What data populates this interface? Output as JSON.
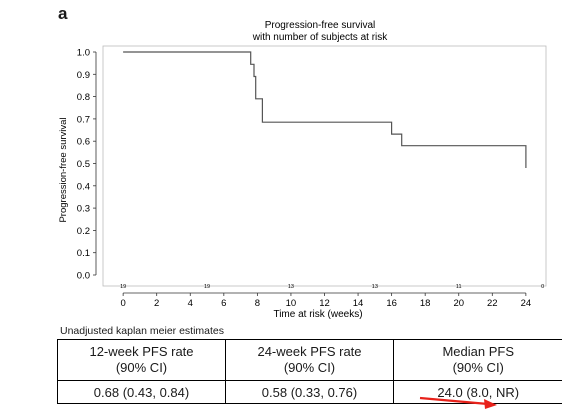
{
  "panel_label": "a",
  "chart_data": {
    "type": "line",
    "step": true,
    "title": "Progression-free survival",
    "subtitle": "with number of subjects at risk",
    "xlabel": "Time at risk (weeks)",
    "ylabel": "Progression-free survival",
    "xlim": [
      -1.2,
      25.2
    ],
    "ylim": [
      0,
      1.05
    ],
    "x_ticks": [
      0,
      2,
      4,
      6,
      8,
      10,
      12,
      14,
      16,
      18,
      20,
      22,
      24
    ],
    "y_ticks": [
      "0.0",
      "0.1",
      "0.2",
      "0.3",
      "0.4",
      "0.5",
      "0.6",
      "0.7",
      "0.8",
      "0.9",
      "1.0"
    ],
    "grid": false,
    "series": [
      {
        "line_color": "#555555",
        "x": [
          0,
          7.6,
          7.6,
          7.8,
          7.8,
          7.9,
          7.9,
          8.3,
          8.3,
          16.0,
          16.0,
          16.6,
          16.6,
          24.0,
          24.0
        ],
        "y": [
          1.0,
          1.0,
          0.945,
          0.945,
          0.89,
          0.89,
          0.79,
          0.79,
          0.685,
          0.685,
          0.632,
          0.632,
          0.58,
          0.58,
          0.48
        ]
      }
    ],
    "at_risk": [
      {
        "x": 0,
        "n": "19"
      },
      {
        "x": 5,
        "n": "19"
      },
      {
        "x": 10,
        "n": "13"
      },
      {
        "x": 15,
        "n": "13"
      },
      {
        "x": 20,
        "n": "11"
      },
      {
        "x": 25,
        "n": "0"
      }
    ]
  },
  "table": {
    "caption": "Unadjusted kaplan meier estimates",
    "headers": [
      {
        "line1": "12-week PFS rate",
        "line2": "(90% CI)"
      },
      {
        "line1": "24-week PFS rate",
        "line2": "(90% CI)"
      },
      {
        "line1": "Median PFS",
        "line2": "(90% CI)"
      }
    ],
    "values": [
      "0.68 (0.43, 0.84)",
      "0.58 (0.33, 0.76)",
      "24.0 (8.0, NR)"
    ]
  },
  "annotation_color": "#e8221b"
}
